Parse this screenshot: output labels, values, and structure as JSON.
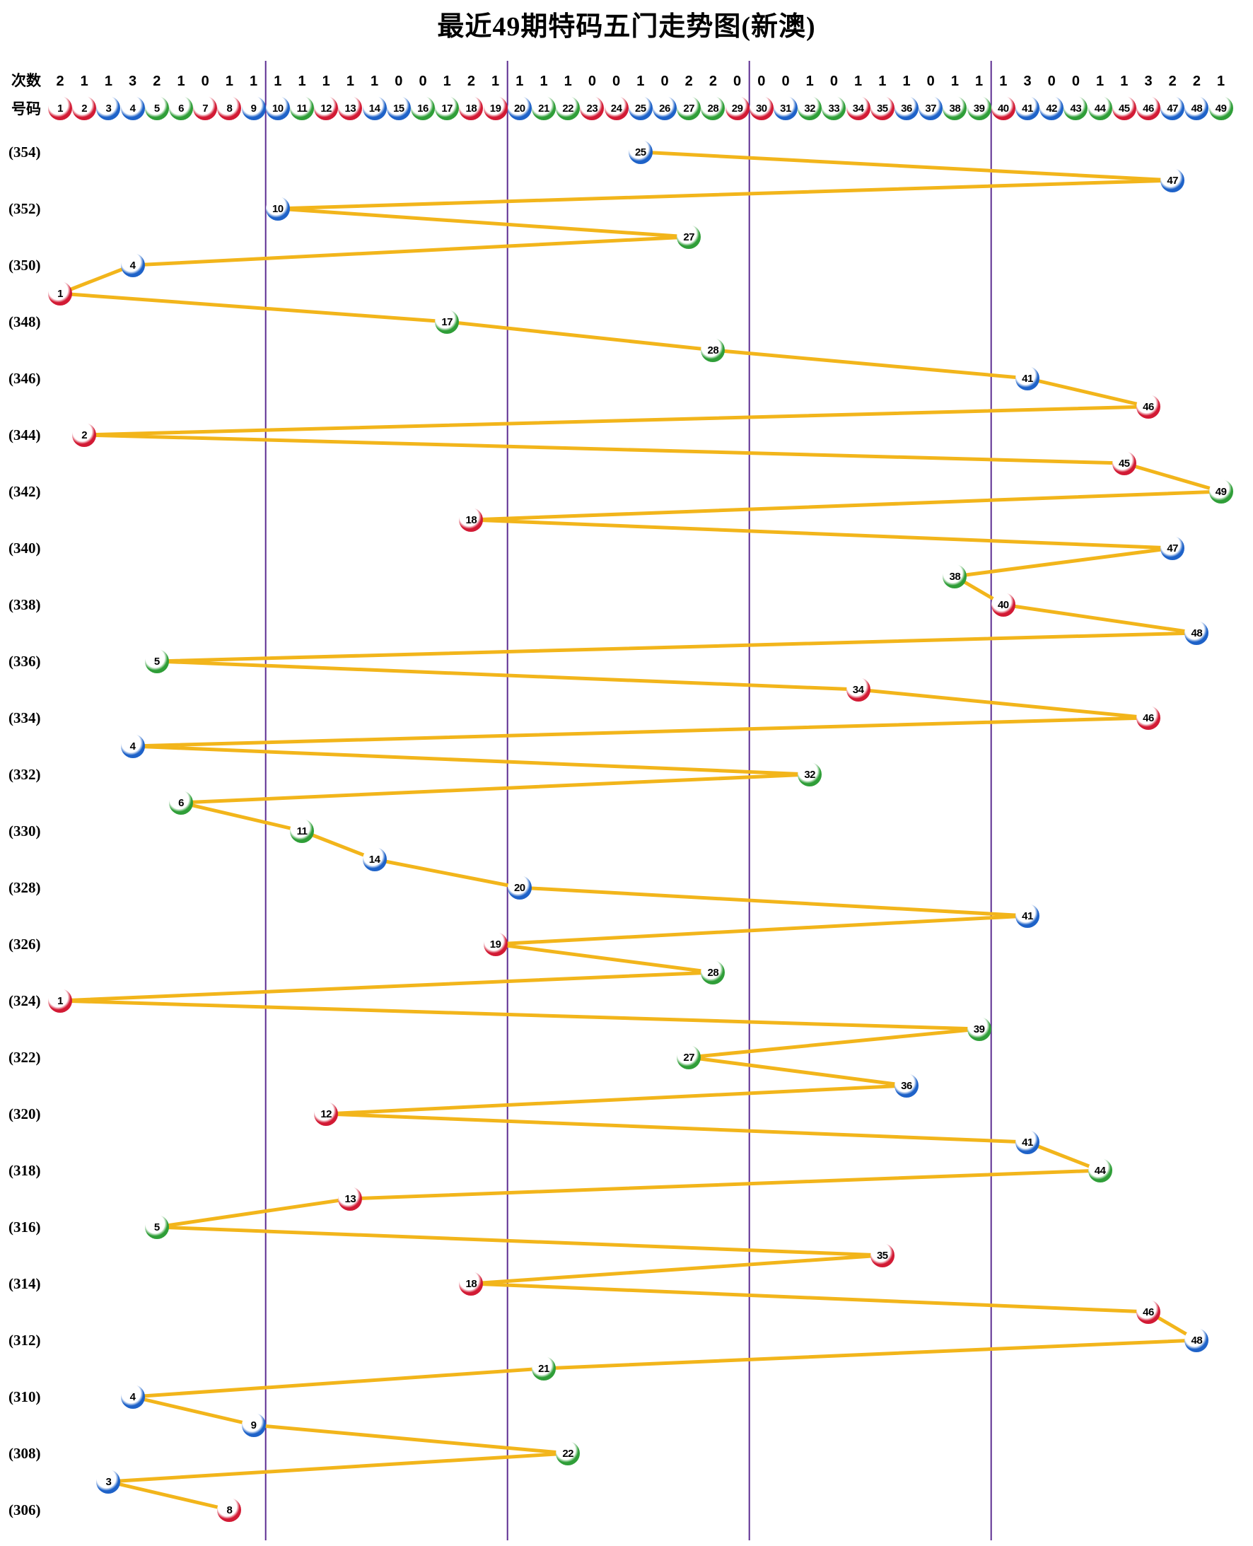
{
  "title": "最近49期特码五门走势图(新澳)",
  "header": {
    "counts_label": "次数",
    "numbers_label": "号码",
    "counts": [
      2,
      1,
      1,
      3,
      2,
      1,
      0,
      1,
      1,
      1,
      1,
      1,
      1,
      1,
      0,
      0,
      1,
      2,
      1,
      1,
      1,
      1,
      0,
      0,
      1,
      0,
      2,
      2,
      0,
      0,
      0,
      1,
      0,
      1,
      1,
      1,
      0,
      1,
      1,
      1,
      3,
      0,
      0,
      1,
      1,
      3,
      2,
      2,
      1
    ],
    "numbers": [
      1,
      2,
      3,
      4,
      5,
      6,
      7,
      8,
      9,
      10,
      11,
      12,
      13,
      14,
      15,
      16,
      17,
      18,
      19,
      20,
      21,
      22,
      23,
      24,
      25,
      26,
      27,
      28,
      29,
      30,
      31,
      32,
      33,
      34,
      35,
      36,
      37,
      38,
      39,
      40,
      41,
      42,
      43,
      44,
      45,
      46,
      47,
      48,
      49
    ]
  },
  "ball_color_groups": {
    "red": [
      1,
      2,
      7,
      8,
      12,
      13,
      18,
      19,
      23,
      24,
      29,
      30,
      34,
      35,
      40,
      45,
      46
    ],
    "blue": [
      3,
      4,
      9,
      10,
      14,
      15,
      20,
      25,
      26,
      31,
      36,
      37,
      41,
      42,
      47,
      48
    ],
    "green": [
      5,
      6,
      11,
      16,
      17,
      21,
      22,
      27,
      28,
      32,
      33,
      38,
      39,
      43,
      44,
      49
    ]
  },
  "colors": {
    "line": "#F2B51B",
    "divider": "#5C2D91",
    "red": "#D21A34",
    "red_dark": "#8C0F20",
    "blue": "#1E62C8",
    "blue_dark": "#103D8C",
    "green": "#2F9E38",
    "green_dark": "#1A6B21",
    "text": "#000000"
  },
  "chart_data": {
    "type": "line",
    "title": "最近49期特码五门走势图(新澳)",
    "xlabel": "号码",
    "x_range": [
      1,
      49
    ],
    "x_sections": [
      [
        1,
        9
      ],
      [
        10,
        19
      ],
      [
        20,
        29
      ],
      [
        30,
        39
      ],
      [
        40,
        49
      ]
    ],
    "ylabel": "期号",
    "period_labels_shown": [
      "(354)",
      "(352)",
      "(350)",
      "(348)",
      "(346)",
      "(344)",
      "(342)",
      "(340)",
      "(338)",
      "(336)",
      "(334)",
      "(332)",
      "(330)",
      "(328)",
      "(326)",
      "(324)",
      "(322)",
      "(320)",
      "(318)",
      "(316)",
      "(314)",
      "(312)",
      "(310)",
      "(308)",
      "(306)"
    ],
    "counts_per_number": [
      2,
      1,
      1,
      3,
      2,
      1,
      0,
      1,
      1,
      1,
      1,
      1,
      1,
      1,
      0,
      0,
      1,
      2,
      1,
      1,
      1,
      1,
      0,
      0,
      1,
      0,
      2,
      2,
      0,
      0,
      0,
      1,
      0,
      1,
      1,
      1,
      0,
      1,
      1,
      1,
      3,
      0,
      0,
      1,
      1,
      3,
      2,
      2,
      1
    ],
    "series": [
      {
        "name": "特码",
        "points": [
          {
            "period": 354,
            "number": 25
          },
          {
            "period": 353,
            "number": 47
          },
          {
            "period": 352,
            "number": 10
          },
          {
            "period": 351,
            "number": 27
          },
          {
            "period": 350,
            "number": 4
          },
          {
            "period": 349,
            "number": 1
          },
          {
            "period": 348,
            "number": 17
          },
          {
            "period": 347,
            "number": 28
          },
          {
            "period": 346,
            "number": 41
          },
          {
            "period": 345,
            "number": 46
          },
          {
            "period": 344,
            "number": 2
          },
          {
            "period": 343,
            "number": 45
          },
          {
            "period": 342,
            "number": 49
          },
          {
            "period": 341,
            "number": 18
          },
          {
            "period": 340,
            "number": 47
          },
          {
            "period": 339,
            "number": 38
          },
          {
            "period": 338,
            "number": 40
          },
          {
            "period": 337,
            "number": 48
          },
          {
            "period": 336,
            "number": 5
          },
          {
            "period": 335,
            "number": 34
          },
          {
            "period": 334,
            "number": 46
          },
          {
            "period": 333,
            "number": 4
          },
          {
            "period": 332,
            "number": 32
          },
          {
            "period": 331,
            "number": 6
          },
          {
            "period": 330,
            "number": 11
          },
          {
            "period": 329,
            "number": 14
          },
          {
            "period": 328,
            "number": 20
          },
          {
            "period": 327,
            "number": 41
          },
          {
            "period": 326,
            "number": 19
          },
          {
            "period": 325,
            "number": 28
          },
          {
            "period": 324,
            "number": 1
          },
          {
            "period": 323,
            "number": 39
          },
          {
            "period": 322,
            "number": 27
          },
          {
            "period": 321,
            "number": 36
          },
          {
            "period": 320,
            "number": 12
          },
          {
            "period": 319,
            "number": 41
          },
          {
            "period": 318,
            "number": 44
          },
          {
            "period": 317,
            "number": 13
          },
          {
            "period": 316,
            "number": 5
          },
          {
            "period": 315,
            "number": 35
          },
          {
            "period": 314,
            "number": 18
          },
          {
            "period": 313,
            "number": 46
          },
          {
            "period": 312,
            "number": 48
          },
          {
            "period": 311,
            "number": 21
          },
          {
            "period": 310,
            "number": 4
          },
          {
            "period": 309,
            "number": 9
          },
          {
            "period": 308,
            "number": 22
          },
          {
            "period": 307,
            "number": 3
          },
          {
            "period": 306,
            "number": 8
          }
        ]
      }
    ]
  }
}
